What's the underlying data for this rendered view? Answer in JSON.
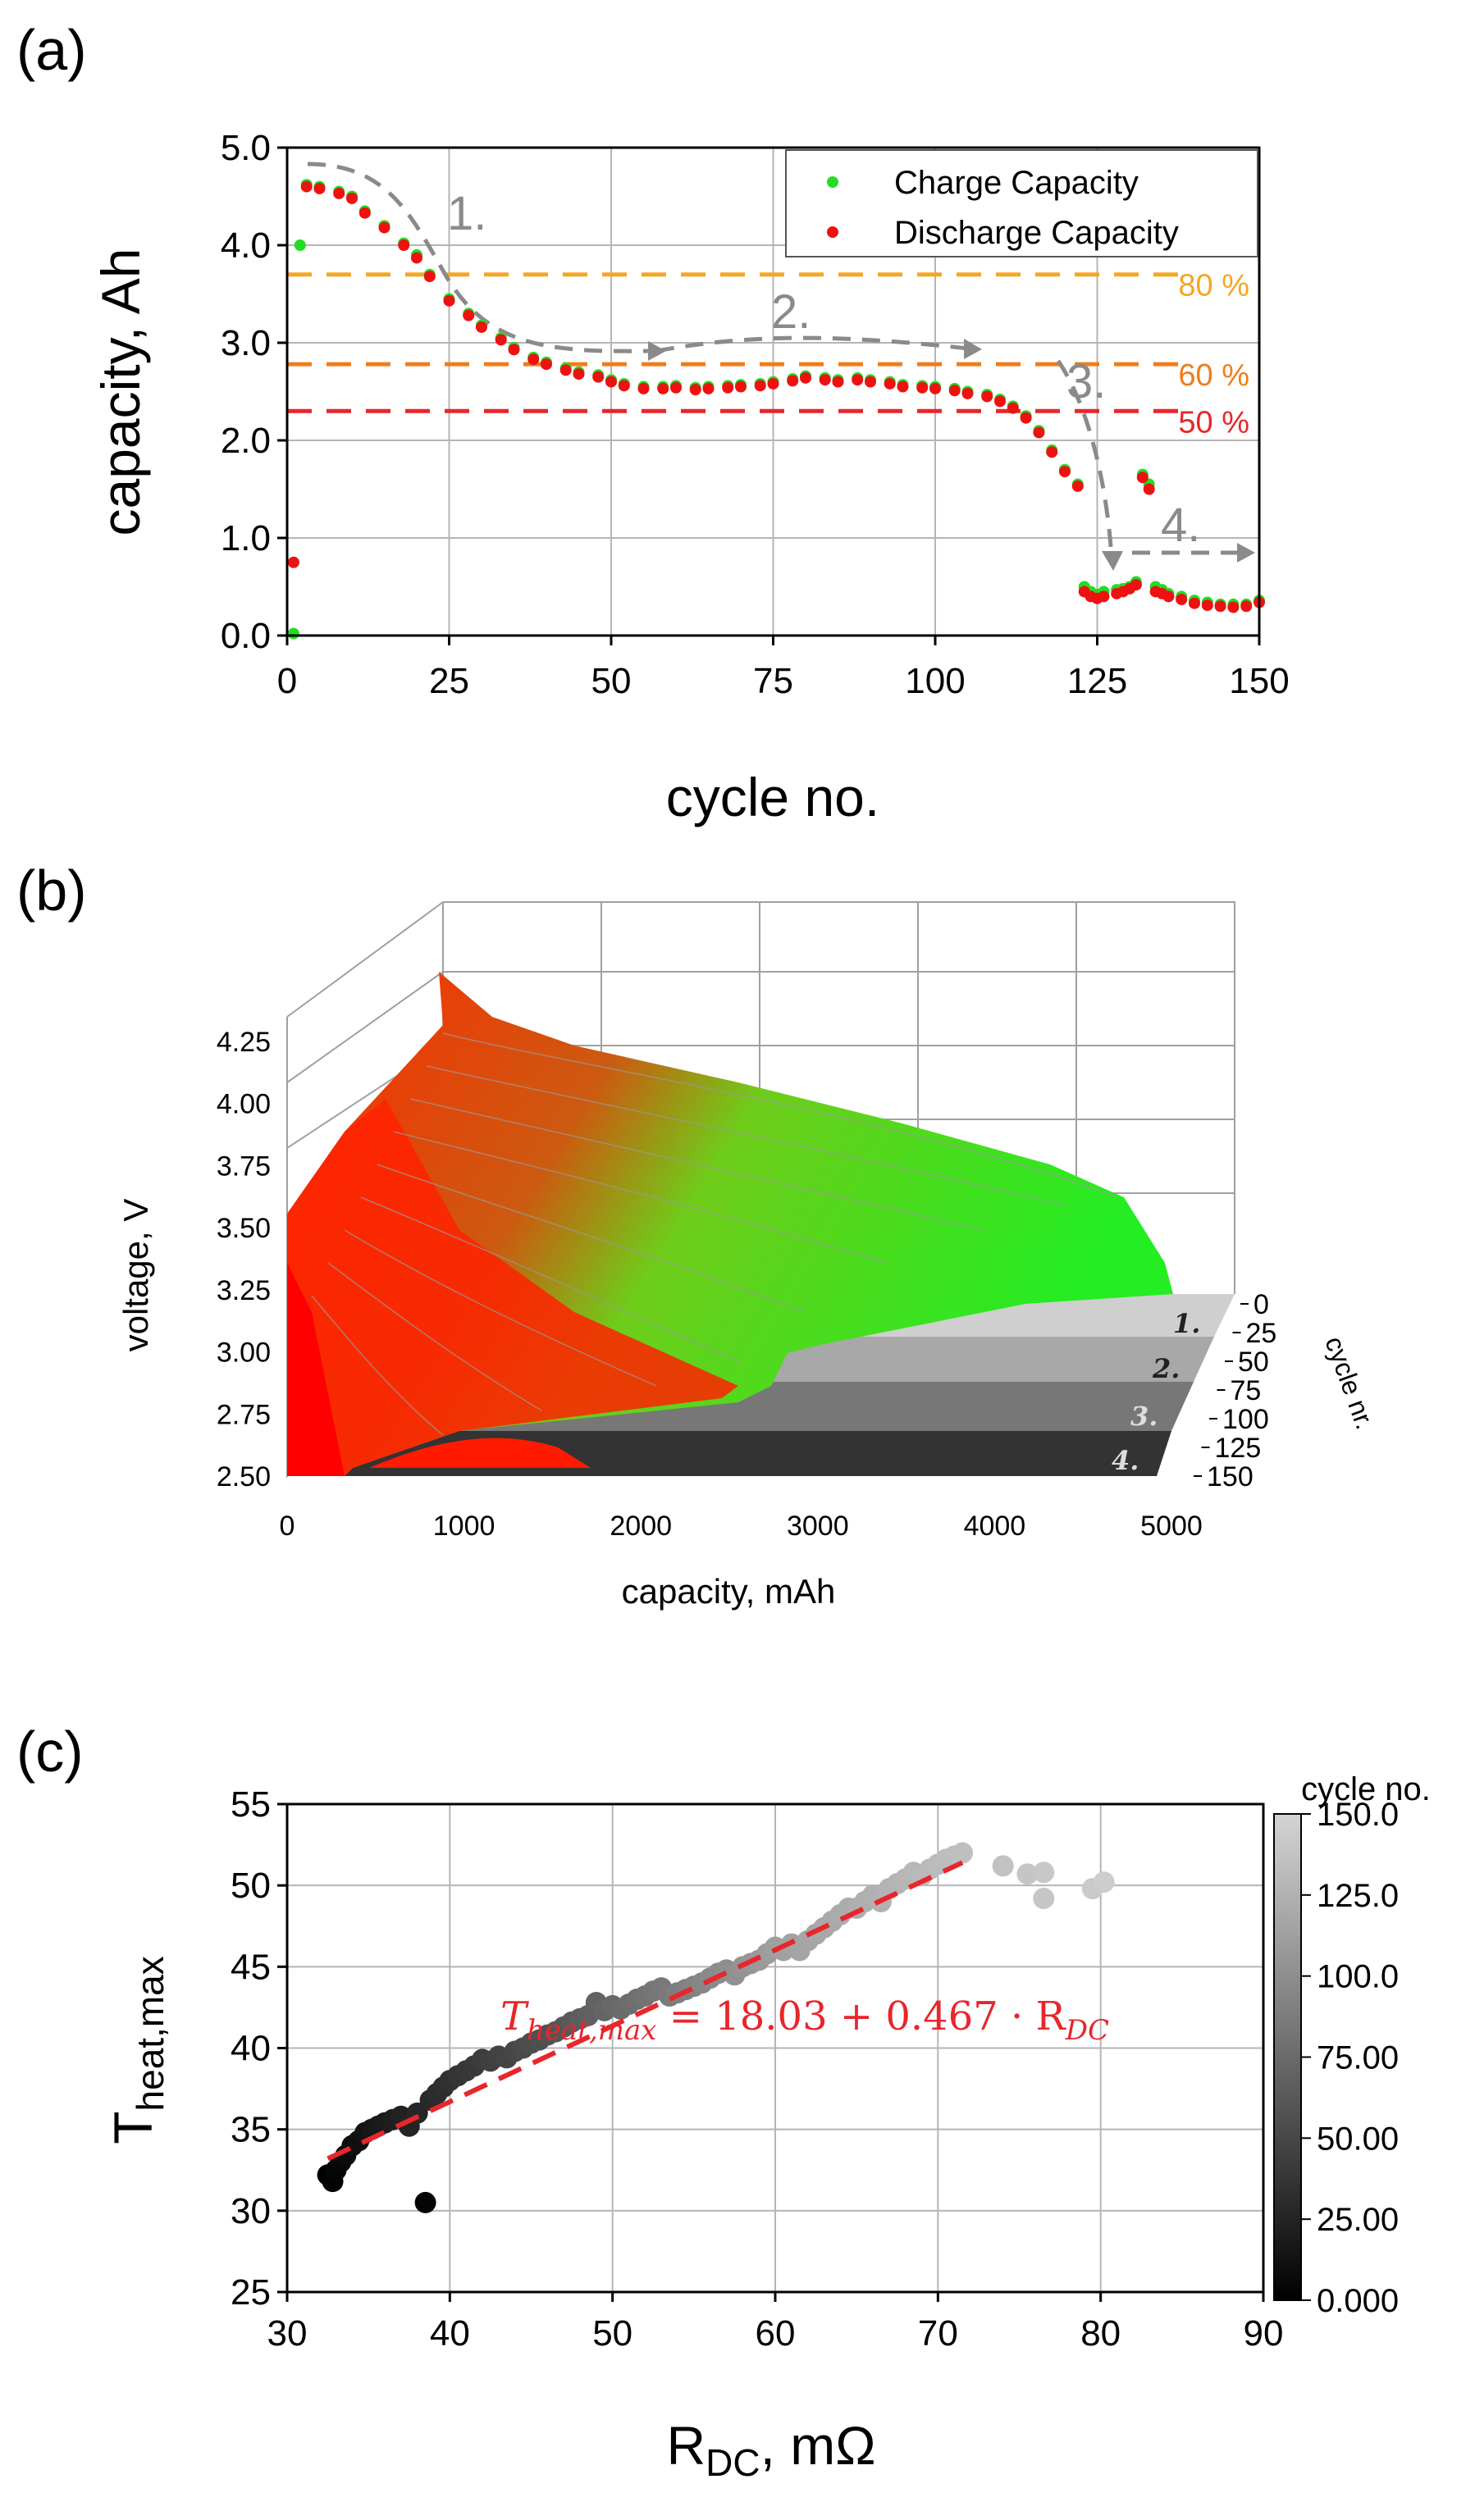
{
  "chart_data": [
    {
      "panel": "(a)",
      "type": "scatter",
      "xlabel": "cycle no.",
      "ylabel": "capacity, Ah",
      "xlim": [
        0,
        150
      ],
      "ylim": [
        0,
        5
      ],
      "xticks": [
        "0",
        "25",
        "50",
        "75",
        "100",
        "125",
        "150"
      ],
      "yticks": [
        "0.0",
        "1.0",
        "2.0",
        "3.0",
        "4.0",
        "5.0"
      ],
      "legend": [
        "Charge Capacity",
        "Discharge Capacity"
      ],
      "legend_position": "top-right",
      "series": [
        {
          "name": "Charge Capacity",
          "color": "#22dd22",
          "x": [
            1,
            2,
            3,
            5,
            8,
            10,
            12,
            15,
            18,
            20,
            22,
            25,
            28,
            30,
            33,
            35,
            38,
            40,
            43,
            45,
            48,
            50,
            52,
            55,
            58,
            60,
            63,
            65,
            68,
            70,
            73,
            75,
            78,
            80,
            83,
            85,
            88,
            90,
            93,
            95,
            98,
            100,
            103,
            105,
            108,
            110,
            112,
            114,
            116,
            118,
            120,
            122,
            123,
            124,
            125,
            126,
            128,
            129,
            130,
            131,
            132,
            133,
            134,
            135,
            136,
            138,
            140,
            142,
            144,
            146,
            148,
            150
          ],
          "y": [
            0.02,
            4.0,
            4.62,
            4.6,
            4.55,
            4.5,
            4.35,
            4.2,
            4.02,
            3.9,
            3.7,
            3.45,
            3.3,
            3.18,
            3.05,
            2.95,
            2.85,
            2.8,
            2.74,
            2.7,
            2.67,
            2.62,
            2.58,
            2.55,
            2.55,
            2.56,
            2.54,
            2.55,
            2.56,
            2.57,
            2.58,
            2.6,
            2.63,
            2.66,
            2.64,
            2.62,
            2.64,
            2.62,
            2.6,
            2.57,
            2.56,
            2.55,
            2.53,
            2.5,
            2.47,
            2.42,
            2.35,
            2.25,
            2.1,
            1.9,
            1.7,
            1.55,
            0.5,
            0.45,
            0.42,
            0.45,
            0.47,
            0.48,
            0.5,
            0.55,
            1.65,
            1.55,
            0.5,
            0.47,
            0.43,
            0.4,
            0.36,
            0.34,
            0.32,
            0.32,
            0.32,
            0.36
          ]
        },
        {
          "name": "Discharge Capacity",
          "color": "#ee1111",
          "x": [
            1,
            3,
            5,
            8,
            10,
            12,
            15,
            18,
            20,
            22,
            25,
            28,
            30,
            33,
            35,
            38,
            40,
            43,
            45,
            48,
            50,
            52,
            55,
            58,
            60,
            63,
            65,
            68,
            70,
            73,
            75,
            78,
            80,
            83,
            85,
            88,
            90,
            93,
            95,
            98,
            100,
            103,
            105,
            108,
            110,
            112,
            114,
            116,
            118,
            120,
            122,
            123,
            124,
            125,
            126,
            128,
            129,
            130,
            131,
            132,
            133,
            134,
            135,
            136,
            138,
            140,
            142,
            144,
            146,
            148,
            150
          ],
          "y": [
            0.75,
            4.6,
            4.58,
            4.53,
            4.48,
            4.33,
            4.18,
            4.0,
            3.87,
            3.68,
            3.43,
            3.28,
            3.16,
            3.03,
            2.93,
            2.83,
            2.78,
            2.72,
            2.68,
            2.65,
            2.6,
            2.56,
            2.53,
            2.53,
            2.54,
            2.52,
            2.53,
            2.54,
            2.55,
            2.56,
            2.58,
            2.61,
            2.64,
            2.62,
            2.6,
            2.62,
            2.6,
            2.58,
            2.55,
            2.54,
            2.53,
            2.51,
            2.48,
            2.45,
            2.4,
            2.33,
            2.23,
            2.08,
            1.88,
            1.68,
            1.53,
            0.45,
            0.4,
            0.38,
            0.4,
            0.43,
            0.45,
            0.48,
            0.52,
            1.62,
            1.5,
            0.45,
            0.43,
            0.4,
            0.37,
            0.33,
            0.31,
            0.3,
            0.29,
            0.3,
            0.34
          ]
        }
      ],
      "reference_lines": [
        {
          "label": "80 %",
          "y": 3.7,
          "color": "#f5a623"
        },
        {
          "label": "60 %",
          "y": 2.78,
          "color": "#f07d1a"
        },
        {
          "label": "50 %",
          "y": 2.3,
          "color": "#e8262b"
        }
      ],
      "phase_labels": [
        "1.",
        "2.",
        "3.",
        "4."
      ]
    },
    {
      "panel": "(b)",
      "type": "area",
      "xlabel": "capacity, mAh",
      "ylabel": "voltage, V",
      "zlabel": "cycle nr.",
      "xlim": [
        0,
        5000
      ],
      "ylim": [
        2.5,
        4.25
      ],
      "zlim": [
        0,
        150
      ],
      "xticks": [
        "0",
        "1000",
        "2000",
        "3000",
        "4000",
        "5000"
      ],
      "yticks": [
        "2.50",
        "2.75",
        "3.00",
        "3.25",
        "3.50",
        "3.75",
        "4.00",
        "4.25"
      ],
      "zticks": [
        "0",
        "25",
        "50",
        "75",
        "100",
        "125",
        "150"
      ],
      "phase_labels": [
        "1.",
        "2.",
        "3.",
        "4."
      ],
      "series": [
        {
          "name": "cycle 0",
          "end_capacity": 4600,
          "start_voltage": 4.2,
          "color": "#22dd22"
        },
        {
          "name": "cycle 50",
          "end_capacity": 2900,
          "start_voltage": 3.95,
          "color": "#88aa22"
        },
        {
          "name": "cycle 100",
          "end_capacity": 2500,
          "start_voltage": 3.85,
          "color": "#dd5522"
        },
        {
          "name": "cycle 125",
          "end_capacity": 400,
          "start_voltage": 3.5,
          "color": "#ff1111"
        },
        {
          "name": "cycle 150",
          "end_capacity": 300,
          "start_voltage": 3.5,
          "color": "#ff0000"
        }
      ]
    },
    {
      "panel": "(c)",
      "type": "scatter",
      "xlabel_main": "R",
      "xlabel_sub": "DC",
      "xlabel_unit": ", mΩ",
      "ylabel_main": "T",
      "ylabel_sub": "heat,max",
      "xlim": [
        30,
        90
      ],
      "ylim": [
        25,
        55
      ],
      "xticks": [
        "30",
        "40",
        "50",
        "60",
        "70",
        "80",
        "90"
      ],
      "yticks": [
        "25",
        "30",
        "35",
        "40",
        "45",
        "50",
        "55"
      ],
      "fit_line": {
        "x": [
          32.5,
          71.5
        ],
        "y": [
          33.2,
          51.4
        ],
        "color": "#e8262b"
      },
      "equation": {
        "lhs": "T",
        "lhs_sub": "heat,max",
        "rhs": " = 18.03 + 0.467 · R",
        "rhs_sub": "DC"
      },
      "colorbar": {
        "title": "cycle no.",
        "range": [
          0,
          150
        ],
        "ticks": [
          "0.000",
          "25.00",
          "50.00",
          "75.00",
          "100.0",
          "125.0",
          "150.0"
        ]
      },
      "points": {
        "x": [
          32.5,
          32.8,
          33.0,
          33.3,
          33.6,
          34.0,
          34.4,
          34.8,
          35.2,
          35.6,
          36.0,
          36.5,
          37.0,
          37.5,
          38.0,
          38.5,
          38.8,
          39.2,
          39.6,
          40.0,
          40.5,
          41.0,
          41.5,
          42.0,
          42.5,
          43.0,
          43.5,
          44.0,
          44.5,
          45.0,
          45.5,
          46.0,
          46.5,
          47.0,
          47.5,
          48.0,
          48.5,
          49.0,
          49.5,
          50.0,
          50.5,
          51.0,
          51.5,
          52.0,
          52.5,
          53.0,
          53.5,
          54.0,
          54.5,
          55.0,
          55.5,
          56.0,
          56.5,
          57.0,
          57.5,
          58.0,
          58.5,
          59.0,
          59.5,
          60.0,
          60.5,
          61.0,
          61.5,
          62.0,
          62.5,
          63.0,
          63.5,
          64.0,
          64.5,
          65.0,
          65.5,
          66.0,
          66.5,
          67.0,
          67.5,
          68.0,
          68.5,
          69.0,
          69.5,
          70.0,
          70.5,
          71.0,
          71.5,
          74.0,
          75.5,
          76.5,
          76.5,
          79.5,
          80.2
        ],
        "y": [
          32.2,
          31.8,
          32.5,
          33.0,
          33.4,
          34.0,
          34.3,
          34.8,
          35.0,
          35.2,
          35.4,
          35.6,
          35.8,
          35.2,
          36.0,
          30.5,
          36.8,
          37.2,
          37.6,
          38.0,
          38.3,
          38.6,
          38.9,
          39.3,
          39.2,
          39.5,
          39.4,
          39.8,
          40.0,
          40.3,
          40.5,
          40.8,
          41.0,
          41.3,
          41.6,
          41.8,
          42.0,
          42.8,
          42.3,
          42.6,
          42.4,
          42.7,
          43.0,
          43.2,
          43.5,
          43.7,
          43.2,
          43.4,
          43.6,
          43.8,
          44.0,
          44.3,
          44.6,
          44.8,
          44.5,
          45.0,
          45.2,
          45.4,
          45.8,
          46.2,
          46.0,
          46.4,
          46.0,
          46.6,
          47.0,
          47.4,
          47.8,
          48.2,
          48.6,
          48.6,
          49.0,
          49.4,
          49.0,
          49.8,
          50.1,
          50.4,
          50.8,
          50.6,
          51.0,
          51.3,
          51.6,
          51.8,
          52.0,
          51.2,
          50.7,
          49.2,
          50.8,
          49.8,
          50.2
        ],
        "cycle": [
          0,
          2,
          4,
          6,
          8,
          10,
          12,
          14,
          16,
          18,
          20,
          22,
          24,
          26,
          28,
          3,
          30,
          32,
          34,
          36,
          38,
          40,
          42,
          44,
          46,
          48,
          50,
          52,
          54,
          56,
          58,
          60,
          62,
          64,
          66,
          68,
          70,
          72,
          74,
          76,
          78,
          80,
          82,
          84,
          86,
          88,
          90,
          92,
          94,
          96,
          98,
          100,
          102,
          104,
          106,
          108,
          110,
          112,
          114,
          116,
          118,
          119,
          120,
          121,
          122,
          123,
          124,
          125,
          126,
          127,
          128,
          129,
          130,
          131,
          132,
          133,
          134,
          135,
          136,
          137,
          138,
          139,
          140,
          142,
          144,
          145,
          146,
          148,
          150
        ]
      }
    }
  ],
  "colors": {
    "charge": "#22dd22",
    "discharge": "#ee1111",
    "grid": "#b0b0b0",
    "arrow": "#8a8a8a"
  }
}
